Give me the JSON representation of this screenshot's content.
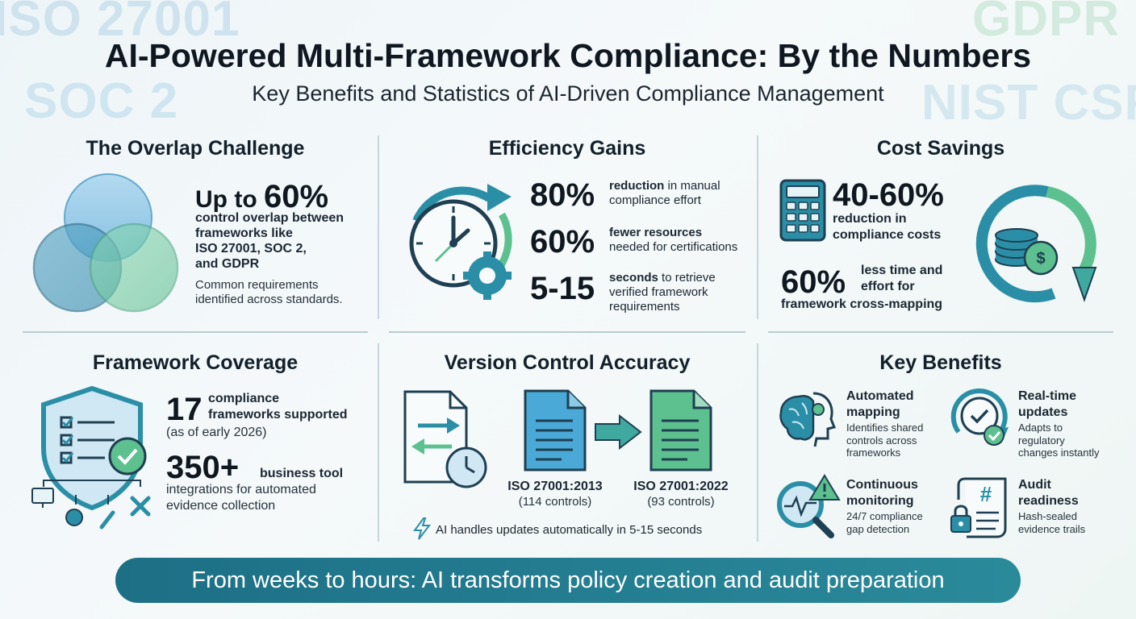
{
  "watermarks": [
    "ISO 27001",
    "SOC 2",
    "GDPR",
    "NIST CSF"
  ],
  "title": "AI-Powered Multi-Framework Compliance: By the Numbers",
  "subtitle": "Key Benefits and Statistics of AI-Driven Compliance Management",
  "overlap": {
    "heading": "The Overlap Challenge",
    "prefix": "Up to",
    "value": "60%",
    "desc_lines": [
      "control overlap between",
      "frameworks like",
      "ISO 27001, SOC 2,",
      "and GDPR"
    ],
    "note_lines": [
      "Common requirements",
      "identified across standards."
    ]
  },
  "efficiency": {
    "heading": "Efficiency Gains",
    "stats": [
      {
        "value": "80%",
        "bold": "reduction",
        "rest": " in manual",
        "line2": "compliance effort",
        "line3": ""
      },
      {
        "value": "60%",
        "bold": "fewer resources",
        "rest": "",
        "line2": "needed for certifications",
        "line3": ""
      },
      {
        "value": "5-15",
        "bold": "seconds",
        "rest": " to retrieve",
        "line2": "verified framework",
        "line3": "requirements"
      }
    ]
  },
  "cost": {
    "heading": "Cost Savings",
    "value1": "40-60%",
    "desc1_lines": [
      "reduction in",
      "compliance costs"
    ],
    "value2": "60%",
    "desc2_lines": [
      "less time and",
      "effort for"
    ],
    "desc2_tail": "framework cross-mapping"
  },
  "coverage": {
    "heading": "Framework Coverage",
    "value1": "17",
    "desc1_lines": [
      "compliance",
      "frameworks supported"
    ],
    "note1": "(as of early 2026)",
    "value2": "350+",
    "desc2_bold": "business tool",
    "desc2_lines": [
      "integrations for automated",
      "evidence collection"
    ]
  },
  "version": {
    "heading": "Version Control Accuracy",
    "old_name": "ISO 27001:2013",
    "old_controls": "(114 controls)",
    "new_name": "ISO 27001:2022",
    "new_controls": "(93 controls)",
    "footer": "AI handles updates automatically in 5-15 seconds"
  },
  "benefits": {
    "heading": "Key Benefits",
    "items": [
      {
        "title_lines": [
          "Automated",
          "mapping"
        ],
        "desc_lines": [
          "Identifies shared",
          "controls across",
          "frameworks"
        ]
      },
      {
        "title_lines": [
          "Real-time",
          "updates"
        ],
        "desc_lines": [
          "Adapts to",
          "regulatory",
          "changes instantly"
        ]
      },
      {
        "title_lines": [
          "Continuous",
          "monitoring"
        ],
        "desc_lines": [
          "24/7 compliance",
          "gap detection"
        ]
      },
      {
        "title_lines": [
          "Audit",
          "readiness"
        ],
        "desc_lines": [
          "Hash-sealed",
          "evidence trails"
        ]
      }
    ]
  },
  "banner": "From weeks to hours: AI transforms policy creation and audit preparation",
  "colors": {
    "teal_dark": "#1f6d86",
    "teal": "#2a8fa6",
    "blue": "#4aa9d6",
    "green": "#5cc08f",
    "text": "#12202b"
  }
}
